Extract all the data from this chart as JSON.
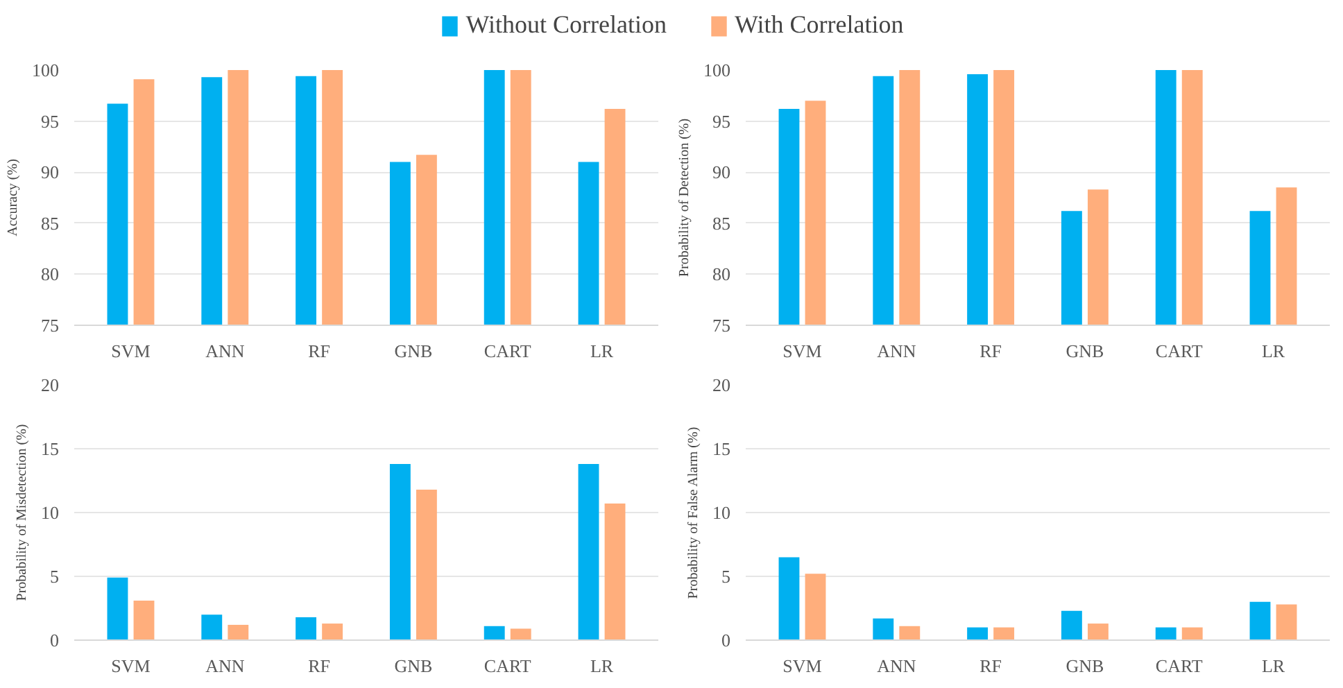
{
  "chart_data": [
    {
      "type": "bar",
      "ylabel": "Accuracy (%)",
      "categories": [
        "SVM",
        "ANN",
        "RF",
        "GNB",
        "CART",
        "LR"
      ],
      "ylim": [
        75,
        100
      ],
      "yticks": [
        75,
        80,
        85,
        90,
        95,
        100
      ],
      "grid": "y",
      "legend": "top",
      "series": [
        {
          "name": "Without Correlation",
          "color": "#00b0f0",
          "values": [
            96.7,
            99.3,
            99.4,
            91.0,
            100,
            91.0
          ]
        },
        {
          "name": "With Correlation",
          "color": "#ffae7c",
          "values": [
            99.1,
            100,
            100,
            91.7,
            100,
            96.2
          ]
        }
      ]
    },
    {
      "type": "bar",
      "ylabel": "Probability of Detection (%)",
      "categories": [
        "SVM",
        "ANN",
        "RF",
        "GNB",
        "CART",
        "LR"
      ],
      "ylim": [
        75,
        100
      ],
      "yticks": [
        75,
        80,
        85,
        90,
        95,
        100
      ],
      "grid": "y",
      "series": [
        {
          "color": "#00b0f0",
          "values": [
            96.2,
            99.4,
            99.6,
            86.2,
            100,
            86.2
          ]
        },
        {
          "color": "#ffae7c",
          "values": [
            97.0,
            100,
            100,
            88.3,
            100,
            88.5
          ]
        }
      ]
    },
    {
      "type": "bar",
      "ylabel": "Probability of Misdetection (%)",
      "categories": [
        "SVM",
        "ANN",
        "RF",
        "GNB",
        "CART",
        "LR"
      ],
      "ylim": [
        0,
        20
      ],
      "yticks": [
        0,
        5,
        10,
        15,
        20
      ],
      "grid": "y",
      "series": [
        {
          "color": "#00b0f0",
          "values": [
            4.9,
            2.0,
            1.8,
            13.8,
            1.1,
            13.8
          ]
        },
        {
          "color": "#ffae7c",
          "values": [
            3.1,
            1.2,
            1.3,
            11.8,
            0.9,
            10.7
          ]
        }
      ]
    },
    {
      "type": "bar",
      "ylabel": "Probability of False Alarm (%)",
      "categories": [
        "SVM",
        "ANN",
        "RF",
        "GNB",
        "CART",
        "LR"
      ],
      "ylim": [
        0,
        20
      ],
      "yticks": [
        0,
        5,
        10,
        15,
        20
      ],
      "grid": "y",
      "series": [
        {
          "color": "#00b0f0",
          "values": [
            6.5,
            1.7,
            1.0,
            2.3,
            1.0,
            3.0
          ]
        },
        {
          "color": "#ffae7c",
          "values": [
            5.2,
            1.1,
            1.0,
            1.3,
            1.0,
            2.8
          ]
        }
      ]
    }
  ]
}
